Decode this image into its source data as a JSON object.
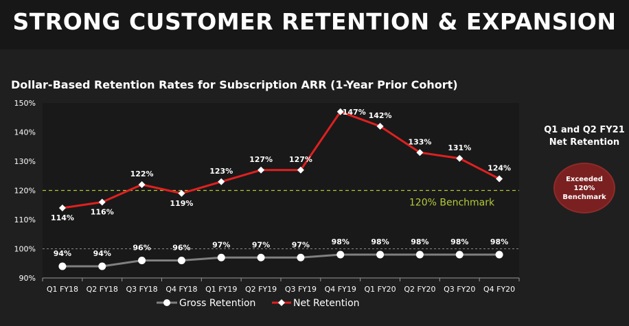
{
  "page": {
    "title": "STRONG CUSTOMER RETENTION & EXPANSION"
  },
  "side_note": {
    "title": "Q1 and Q2 FY21\nNet Retention",
    "badge": "Exceeded\n120%\nBenchmark",
    "badge_color": "#7a2020"
  },
  "chart_data": {
    "type": "line",
    "title": "Dollar-Based Retention Rates for Subscription ARR (1-Year Prior Cohort)",
    "categories": [
      "Q1 FY18",
      "Q2 FY18",
      "Q3 FY18",
      "Q4 FY18",
      "Q1 FY19",
      "Q2 FY19",
      "Q3 FY19",
      "Q4 FY19",
      "Q1 FY20",
      "Q2 FY20",
      "Q3 FY20",
      "Q4 FY20"
    ],
    "y_ticks": [
      "150%",
      "140%",
      "130%",
      "120%",
      "110%",
      "100%",
      "90%"
    ],
    "ylim": [
      90,
      150
    ],
    "series": [
      {
        "name": "Gross Retention",
        "color": "#808080",
        "marker": "circle",
        "values": [
          94,
          94,
          96,
          96,
          97,
          97,
          97,
          98,
          98,
          98,
          98,
          98
        ],
        "labels": [
          "94%",
          "94%",
          "96%",
          "96%",
          "97%",
          "97%",
          "97%",
          "98%",
          "98%",
          "98%",
          "98%",
          "98%"
        ]
      },
      {
        "name": "Net Retention",
        "color": "#e02020",
        "marker": "diamond",
        "values": [
          114,
          116,
          122,
          119,
          123,
          127,
          127,
          147,
          142,
          133,
          131,
          124
        ],
        "labels": [
          "114%",
          "116%",
          "122%",
          "119%",
          "123%",
          "127%",
          "127%",
          "147%",
          "142%",
          "133%",
          "131%",
          "124%"
        ]
      }
    ],
    "reference_lines": [
      {
        "value": 120,
        "label": "120% Benchmark",
        "color": "#b5c93a",
        "style": "dashed"
      },
      {
        "value": 100,
        "label": "",
        "color": "#8a8a8a",
        "style": "dashed"
      }
    ],
    "legend_position": "bottom",
    "grid": false
  }
}
